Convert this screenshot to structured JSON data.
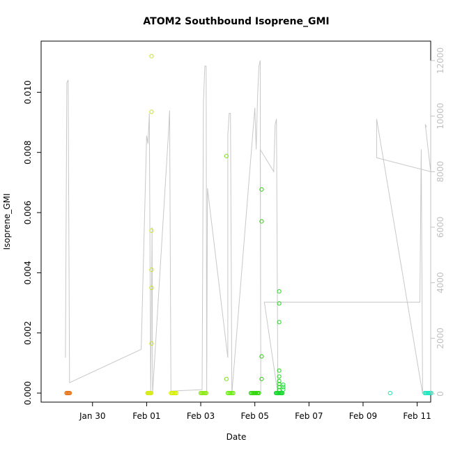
{
  "chart_data": {
    "type": "scatter",
    "title": "ATOM2 Southbound Isoprene_GMI",
    "xlabel": "Date",
    "ylabel": "Isoprene_GMI",
    "x_ticks": [
      {
        "day": 29.5,
        "label": "Jan 30"
      },
      {
        "day": 31.5,
        "label": "Feb 01"
      },
      {
        "day": 33.5,
        "label": "Feb 03"
      },
      {
        "day": 35.5,
        "label": "Feb 05"
      },
      {
        "day": 37.5,
        "label": "Feb 07"
      },
      {
        "day": 39.5,
        "label": "Feb 09"
      },
      {
        "day": 41.5,
        "label": "Feb 11"
      }
    ],
    "xlim": [
      27.6,
      42.0
    ],
    "y_ticks": [
      0.0,
      0.002,
      0.004,
      0.006,
      0.008,
      0.01
    ],
    "y_tick_labels": [
      "0.000",
      "0.002",
      "0.004",
      "0.006",
      "0.008",
      "0.010"
    ],
    "ylim": [
      -0.0003,
      0.0117
    ],
    "y2_ticks": [
      0,
      2000,
      4000,
      6000,
      8000,
      10000,
      12000
    ],
    "y2_tick_labels": [
      "0",
      "2000",
      "4000",
      "6000",
      "8000",
      "10000",
      "12000"
    ],
    "y2lim": [
      -300,
      12700
    ],
    "altitude_series": {
      "color": "#c8c8c8",
      "points": [
        [
          28.5,
          1300
        ],
        [
          28.55,
          11200
        ],
        [
          28.6,
          11300
        ],
        [
          28.65,
          400
        ],
        [
          31.3,
          1600
        ],
        [
          31.5,
          9300
        ],
        [
          31.55,
          9000
        ],
        [
          31.6,
          10100
        ],
        [
          31.65,
          0
        ],
        [
          31.7,
          6000
        ],
        [
          31.72,
          0
        ],
        [
          32.3,
          9300
        ],
        [
          32.35,
          10200
        ],
        [
          32.4,
          0
        ],
        [
          32.42,
          100
        ],
        [
          33.55,
          150
        ],
        [
          33.6,
          10500
        ],
        [
          33.65,
          11800
        ],
        [
          33.7,
          11800
        ],
        [
          33.72,
          0
        ],
        [
          33.75,
          7400
        ],
        [
          34.5,
          1300
        ],
        [
          34.5,
          9300
        ],
        [
          34.55,
          10100
        ],
        [
          34.6,
          10100
        ],
        [
          34.65,
          0
        ],
        [
          35.5,
          10300
        ],
        [
          35.55,
          8800
        ],
        [
          35.6,
          10700
        ],
        [
          35.65,
          11800
        ],
        [
          35.7,
          12000
        ],
        [
          35.72,
          0
        ],
        [
          35.7,
          8800
        ],
        [
          36.2,
          8000
        ],
        [
          36.25,
          9700
        ],
        [
          36.3,
          9900
        ],
        [
          36.35,
          0
        ],
        [
          35.85,
          3300
        ],
        [
          41.6,
          3300
        ],
        [
          41.65,
          8800
        ],
        [
          41.7,
          0
        ],
        [
          40.0,
          9900
        ],
        [
          40.0,
          8500
        ],
        [
          42.0,
          8000
        ],
        [
          41.8,
          9700
        ],
        [
          41.85,
          9600
        ]
      ]
    },
    "clusters": [
      {
        "x_center": 28.6,
        "x_spread": 0.06,
        "color": "#e8751a",
        "values": [
          0.0,
          0.0,
          0.0,
          0.0,
          0.0
        ]
      },
      {
        "x_center": 31.6,
        "x_spread": 0.07,
        "color": "#d8ec1a",
        "values": [
          0.0,
          0.0,
          0.0,
          0.0,
          0.0,
          0.0,
          0.0,
          0.0
        ]
      },
      {
        "x_center": 31.68,
        "x_spread": 0.0,
        "color": "#c8e420",
        "values": [
          0.0112,
          0.00935,
          0.0054,
          0.0041,
          0.0035,
          0.00165
        ]
      },
      {
        "x_center": 32.5,
        "x_spread": 0.1,
        "color": "#d6f000",
        "values": [
          0.0,
          0.0,
          0.0,
          0.0,
          0.0,
          0.0
        ]
      },
      {
        "x_center": 33.6,
        "x_spread": 0.1,
        "color": "#8fe81a",
        "values": [
          0.0,
          0.0,
          0.0,
          0.0,
          0.0,
          0.0,
          0.0
        ]
      },
      {
        "x_center": 34.45,
        "x_spread": 0.0,
        "color": "#7fe020",
        "values": [
          0.00788,
          0.00047
        ]
      },
      {
        "x_center": 34.6,
        "x_spread": 0.1,
        "color": "#6bec10",
        "values": [
          0.0,
          0.0,
          0.0,
          0.0,
          0.0,
          0.0
        ]
      },
      {
        "x_center": 35.5,
        "x_spread": 0.15,
        "color": "#33d80c",
        "values": [
          0.0,
          0.0,
          0.0,
          0.0,
          0.0,
          0.0,
          0.0,
          0.0,
          0.0
        ]
      },
      {
        "x_center": 35.75,
        "x_spread": 0.0,
        "color": "#2fd012",
        "values": [
          0.00677,
          0.00571,
          0.00122,
          0.00047
        ]
      },
      {
        "x_center": 36.4,
        "x_spread": 0.12,
        "color": "#18d830",
        "values": [
          0.0,
          0.0,
          0.0,
          0.0,
          0.0,
          0.0,
          0.0,
          0.0,
          0.0
        ]
      },
      {
        "x_center": 36.4,
        "x_spread": 0.0,
        "color": "#2ad22a",
        "values": [
          0.00338,
          0.00298,
          0.00236,
          0.00075,
          0.00055,
          0.0004,
          0.0003,
          0.0002,
          0.0001
        ]
      },
      {
        "x_center": 36.55,
        "x_spread": 0.0,
        "color": "#20e040",
        "values": [
          0.00028,
          0.0002,
          0.00012
        ]
      },
      {
        "x_center": 40.5,
        "x_spread": 0.0,
        "color": "#1ee8b0",
        "values": [
          0.0
        ]
      },
      {
        "x_center": 41.9,
        "x_spread": 0.12,
        "color": "#1ee8c0",
        "values": [
          0.0,
          0.0,
          0.0,
          0.0,
          0.0,
          0.0,
          0.0,
          0.0
        ]
      }
    ]
  }
}
